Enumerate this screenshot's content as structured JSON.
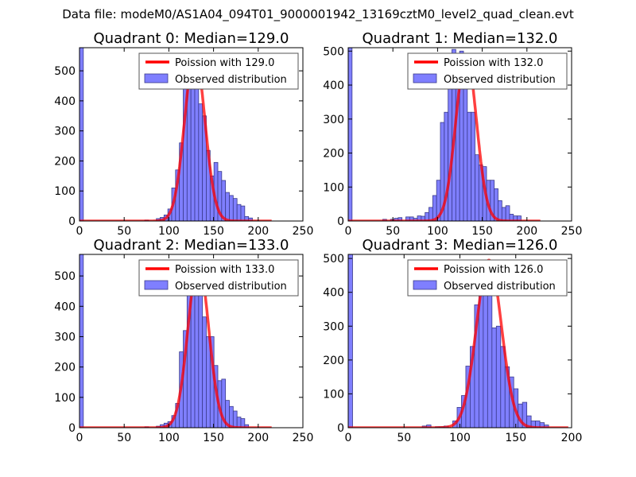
{
  "suptitle": "Data file: modeM0/AS1A04_094T01_9000001942_13169cztM0_level2_quad_clean.evt",
  "colors": {
    "bar": "#7f7fff",
    "bar_edge": "#3a3a8a",
    "curve": "#ff0000"
  },
  "chart_data": [
    {
      "type": "bar",
      "title": "Quadrant 0: Median=129.0",
      "legend": {
        "curve": "Poission with 129.0",
        "bars": "Observed distribution",
        "placement": "top-right"
      },
      "xlim": [
        0,
        250
      ],
      "ylim": [
        0,
        577
      ],
      "xticks": [
        0,
        50,
        100,
        150,
        200,
        250
      ],
      "yticks": [
        0,
        100,
        200,
        300,
        400,
        500
      ],
      "bin_width": 4.3,
      "bins": [
        [
          0,
          2000
        ],
        [
          73,
          3
        ],
        [
          86,
          8
        ],
        [
          90.3,
          12
        ],
        [
          94.6,
          20
        ],
        [
          98.9,
          40
        ],
        [
          103.2,
          110
        ],
        [
          107.5,
          170
        ],
        [
          111.8,
          260
        ],
        [
          116.1,
          445
        ],
        [
          120.4,
          440
        ],
        [
          124.7,
          510
        ],
        [
          129,
          445
        ],
        [
          133.3,
          390
        ],
        [
          137.6,
          350
        ],
        [
          141.9,
          235
        ],
        [
          146.2,
          150
        ],
        [
          150.5,
          195
        ],
        [
          154.8,
          165
        ],
        [
          159.1,
          135
        ],
        [
          163.4,
          95
        ],
        [
          167.7,
          85
        ],
        [
          172,
          75
        ],
        [
          176.3,
          55
        ],
        [
          180.6,
          50
        ],
        [
          184.9,
          15
        ],
        [
          189.2,
          10
        ]
      ],
      "poisson": {
        "lambda": 129.0,
        "peak": 555,
        "x_range": [
          0,
          215
        ]
      }
    },
    {
      "type": "bar",
      "title": "Quadrant 1: Median=132.0",
      "legend": {
        "curve": "Poission with 132.0",
        "bars": "Observed distribution",
        "placement": "top-right"
      },
      "xlim": [
        0,
        250
      ],
      "ylim": [
        0,
        510
      ],
      "xticks": [
        0,
        50,
        100,
        150,
        200,
        250
      ],
      "yticks": [
        0,
        100,
        200,
        300,
        400,
        500
      ],
      "bin_width": 4.3,
      "bins": [
        [
          0,
          2000
        ],
        [
          38.7,
          5
        ],
        [
          47.3,
          5
        ],
        [
          51.6,
          8
        ],
        [
          55.9,
          10
        ],
        [
          64.5,
          12
        ],
        [
          68.8,
          12
        ],
        [
          73.1,
          8
        ],
        [
          77.4,
          15
        ],
        [
          81.7,
          14
        ],
        [
          86,
          25
        ],
        [
          90.3,
          40
        ],
        [
          94.6,
          75
        ],
        [
          98.9,
          120
        ],
        [
          103.2,
          290
        ],
        [
          107.5,
          320
        ],
        [
          111.8,
          450
        ],
        [
          116.1,
          505
        ],
        [
          120.4,
          480
        ],
        [
          124.7,
          500
        ],
        [
          129,
          430
        ],
        [
          133.3,
          320
        ],
        [
          137.6,
          320
        ],
        [
          141.9,
          195
        ],
        [
          146.2,
          165
        ],
        [
          150.5,
          160
        ],
        [
          154.8,
          120
        ],
        [
          159.1,
          120
        ],
        [
          163.4,
          95
        ],
        [
          167.7,
          60
        ],
        [
          172,
          40
        ],
        [
          176.3,
          45
        ],
        [
          180.6,
          20
        ],
        [
          184.9,
          15
        ],
        [
          189.2,
          15
        ]
      ],
      "poisson": {
        "lambda": 132.0,
        "peak": 490,
        "x_range": [
          0,
          215
        ]
      }
    },
    {
      "type": "bar",
      "title": "Quadrant 2: Median=133.0",
      "legend": {
        "curve": "Poission with 133.0",
        "bars": "Observed distribution",
        "placement": "top-right"
      },
      "xlim": [
        0,
        250
      ],
      "ylim": [
        0,
        571
      ],
      "xticks": [
        0,
        50,
        100,
        150,
        200,
        250
      ],
      "yticks": [
        0,
        100,
        200,
        300,
        400,
        500
      ],
      "bin_width": 4.3,
      "bins": [
        [
          0,
          2000
        ],
        [
          73.1,
          3
        ],
        [
          86,
          5
        ],
        [
          90.3,
          10
        ],
        [
          94.6,
          15
        ],
        [
          98.9,
          20
        ],
        [
          103.2,
          40
        ],
        [
          107.5,
          80
        ],
        [
          111.8,
          250
        ],
        [
          116.1,
          320
        ],
        [
          120.4,
          435
        ],
        [
          124.7,
          540
        ],
        [
          129,
          480
        ],
        [
          133.3,
          470
        ],
        [
          137.6,
          365
        ],
        [
          141.9,
          300
        ],
        [
          146.2,
          300
        ],
        [
          150.5,
          205
        ],
        [
          154.8,
          155
        ],
        [
          159.1,
          160
        ],
        [
          163.4,
          90
        ],
        [
          167.7,
          70
        ],
        [
          172,
          55
        ],
        [
          176.3,
          35
        ],
        [
          180.6,
          30
        ],
        [
          184.9,
          10
        ]
      ],
      "poisson": {
        "lambda": 133.0,
        "peak": 545,
        "x_range": [
          0,
          215
        ]
      }
    },
    {
      "type": "bar",
      "title": "Quadrant 3: Median=126.0",
      "legend": {
        "curve": "Poission with 126.0",
        "bars": "Observed distribution",
        "placement": "top-right"
      },
      "xlim": [
        0,
        200
      ],
      "ylim": [
        0,
        512
      ],
      "xticks": [
        0,
        50,
        100,
        150,
        200
      ],
      "yticks": [
        0,
        100,
        200,
        300,
        400,
        500
      ],
      "bin_width": 3.9,
      "bins": [
        [
          0,
          2000
        ],
        [
          66.3,
          5
        ],
        [
          70.2,
          8
        ],
        [
          78,
          3
        ],
        [
          81.9,
          3
        ],
        [
          85.8,
          5
        ],
        [
          93.6,
          20
        ],
        [
          97.5,
          60
        ],
        [
          101.4,
          95
        ],
        [
          105.3,
          182
        ],
        [
          109.2,
          240
        ],
        [
          113.1,
          363
        ],
        [
          117,
          455
        ],
        [
          120.9,
          495
        ],
        [
          124.8,
          460
        ],
        [
          128.7,
          295
        ],
        [
          132.6,
          300
        ],
        [
          136.5,
          240
        ],
        [
          140.4,
          180
        ],
        [
          144.3,
          150
        ],
        [
          148.2,
          115
        ],
        [
          152.1,
          70
        ],
        [
          156,
          75
        ],
        [
          159.9,
          35
        ],
        [
          163.8,
          20
        ],
        [
          167.7,
          20
        ],
        [
          171.6,
          15
        ],
        [
          175.5,
          8
        ]
      ],
      "poisson": {
        "lambda": 126.0,
        "peak": 495,
        "x_range": [
          0,
          197
        ]
      }
    }
  ]
}
